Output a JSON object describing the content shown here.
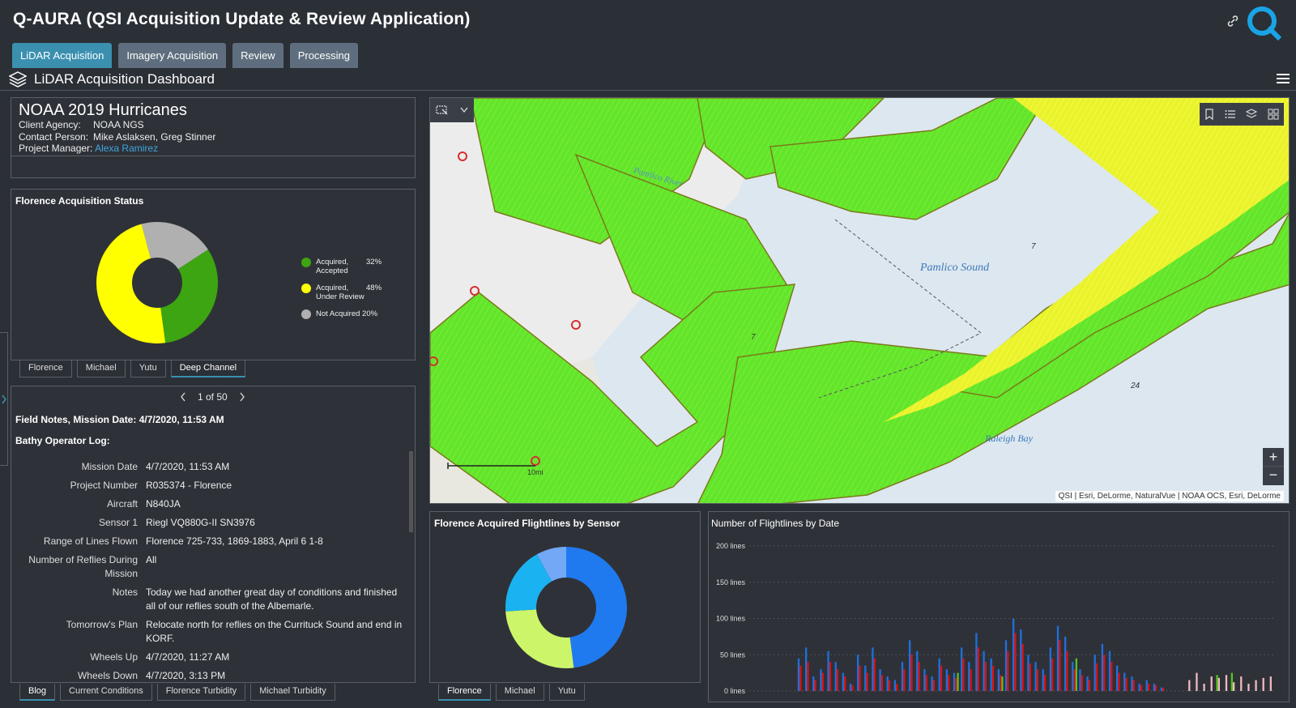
{
  "app": {
    "title": "Q-AURA (QSI Acquisition Update & Review Application)"
  },
  "tabs": [
    {
      "label": "LiDAR Acquisition",
      "active": true
    },
    {
      "label": "Imagery Acquisition",
      "active": false
    },
    {
      "label": "Review",
      "active": false
    },
    {
      "label": "Processing",
      "active": false
    }
  ],
  "dashboard": {
    "title": "LiDAR Acquisition Dashboard"
  },
  "project": {
    "name": "NOAA 2019 Hurricanes",
    "client_label": "Client Agency:",
    "client": "NOAA NGS",
    "contact_label": "Contact Person:",
    "contact": "Mike Aslaksen, Greg Stinner",
    "manager_label": "Project Manager:",
    "manager": "Alexa Ramirez"
  },
  "status_panel": {
    "title": "Florence Acquisition Status",
    "legend": [
      {
        "label": "Acquired, Accepted",
        "pct": "32%",
        "color": "#3da511"
      },
      {
        "label": "Acquired, Under Review",
        "pct": "48%",
        "color": "#ffff00"
      },
      {
        "label": "Not Acquired",
        "pct": "20%",
        "color": "#b0b0b0"
      }
    ],
    "tabs": [
      "Florence",
      "Michael",
      "Yutu",
      "Deep Channel"
    ],
    "active_tab": 3
  },
  "notes": {
    "pager": "1 of 50",
    "heading": "Field Notes, Mission Date: 4/7/2020, 11:53 AM",
    "subheading": "Bathy Operator Log:",
    "rows": [
      {
        "k": "Mission Date",
        "v": "4/7/2020, 11:53 AM"
      },
      {
        "k": "Project Number",
        "v": "R035374 - Florence"
      },
      {
        "k": "Aircraft",
        "v": "N840JA"
      },
      {
        "k": "Sensor 1",
        "v": "Riegl VQ880G-II SN3976"
      },
      {
        "k": "Range of Lines Flown",
        "v": "Florence 725-733, 1869-1883, April 6 1-8"
      },
      {
        "k": "Number of Reflies During Mission",
        "v": "All"
      },
      {
        "k": "Notes",
        "v": "Today we had another great day of conditions and finished all of our reflies south of the Albemarle."
      },
      {
        "k": "Tomorrow's Plan",
        "v": "Relocate north for reflies on the Currituck Sound and end in KORF."
      },
      {
        "k": "Wheels Up",
        "v": "4/7/2020, 11:27 AM"
      },
      {
        "k": "Wheels Down",
        "v": "4/7/2020, 3:13 PM"
      }
    ],
    "tabs": [
      "Blog",
      "Current Conditions",
      "Florence Turbidity",
      "Michael Turbidity"
    ],
    "active_tab": 0
  },
  "map": {
    "labels": {
      "river": "Pamlico River",
      "sound": "Pamlico Sound",
      "bay": "Raleigh Bay",
      "d7a": "7",
      "d7b": "7",
      "d24": "24"
    },
    "scale": "10mi",
    "attribution": "QSI | Esri, DeLorme, NaturalVue | NOAA OCS, Esri, DeLorme",
    "zoom_in": "+",
    "zoom_out": "−"
  },
  "sensor_panel": {
    "title": "Florence Acquired Flightlines by Sensor",
    "tabs": [
      "Florence",
      "Michael",
      "Yutu"
    ],
    "active_tab": 0
  },
  "chart_data": {
    "type": "bar",
    "title": "Number of Flightlines by Date",
    "ylabel": "",
    "xlabel": "",
    "ylim": [
      0,
      200
    ],
    "yticks": [
      "0 lines",
      "50 lines",
      "100 lines",
      "150 lines",
      "200 lines"
    ],
    "series": [
      {
        "color": "#1f6fe0",
        "values": [
          0,
          0,
          0,
          0,
          0,
          0,
          45,
          60,
          20,
          30,
          55,
          40,
          25,
          10,
          50,
          35,
          60,
          30,
          20,
          15,
          40,
          70,
          55,
          30,
          20,
          45,
          30,
          25,
          60,
          40,
          80,
          55,
          45,
          30,
          70,
          100,
          85,
          50,
          40,
          30,
          60,
          90,
          75,
          40,
          30,
          20,
          50,
          65,
          55,
          35,
          25,
          20,
          10,
          15,
          10,
          5,
          0,
          0,
          0,
          0,
          0,
          0,
          0,
          0,
          0,
          0,
          0,
          0,
          0,
          0
        ]
      },
      {
        "color": "#e01010",
        "values": [
          0,
          0,
          0,
          0,
          0,
          0,
          35,
          40,
          15,
          25,
          40,
          30,
          20,
          8,
          35,
          25,
          45,
          22,
          15,
          10,
          30,
          50,
          40,
          22,
          15,
          35,
          22,
          18,
          45,
          30,
          60,
          40,
          35,
          22,
          55,
          80,
          65,
          38,
          30,
          22,
          45,
          70,
          55,
          30,
          22,
          15,
          38,
          50,
          40,
          25,
          18,
          15,
          8,
          10,
          8,
          4,
          0,
          0,
          0,
          0,
          0,
          0,
          0,
          0,
          0,
          0,
          0,
          0,
          0,
          0
        ]
      },
      {
        "color": "#56c41f",
        "values": [
          0,
          0,
          0,
          0,
          0,
          0,
          0,
          0,
          0,
          0,
          0,
          0,
          0,
          0,
          0,
          0,
          0,
          0,
          0,
          0,
          0,
          0,
          0,
          0,
          0,
          0,
          0,
          25,
          0,
          0,
          0,
          0,
          0,
          20,
          0,
          0,
          0,
          0,
          0,
          0,
          0,
          0,
          0,
          45,
          0,
          0,
          0,
          0,
          0,
          0,
          0,
          0,
          0,
          0,
          0,
          0,
          0,
          0,
          0,
          0,
          0,
          0,
          22,
          0,
          25,
          0,
          0,
          0,
          0,
          0
        ]
      },
      {
        "color": "#f2b8c0",
        "values": [
          0,
          0,
          0,
          0,
          0,
          0,
          0,
          0,
          0,
          0,
          0,
          0,
          0,
          0,
          0,
          0,
          0,
          0,
          0,
          0,
          0,
          0,
          0,
          0,
          0,
          0,
          0,
          0,
          0,
          0,
          0,
          0,
          0,
          0,
          0,
          0,
          0,
          0,
          0,
          0,
          0,
          0,
          0,
          0,
          0,
          0,
          0,
          0,
          0,
          0,
          0,
          0,
          0,
          0,
          0,
          0,
          0,
          0,
          15,
          25,
          10,
          20,
          18,
          22,
          12,
          20,
          10,
          15,
          18,
          20
        ]
      }
    ]
  }
}
